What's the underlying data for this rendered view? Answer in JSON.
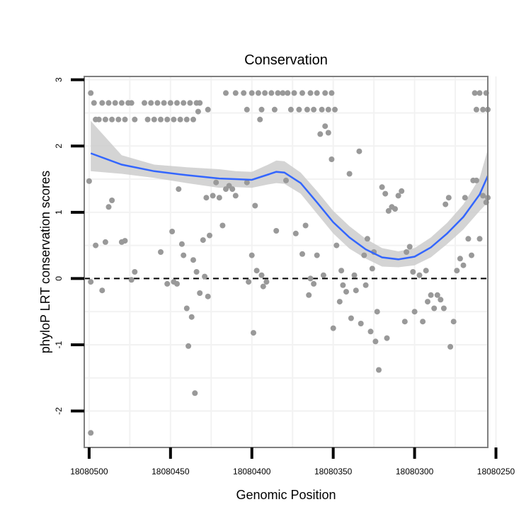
{
  "chart_data": {
    "type": "scatter",
    "title": "Conservation",
    "xlabel": "Genomic Position",
    "ylabel": "phyloP LRT conservation scores",
    "x_reversed": true,
    "xlim": [
      18080255,
      18080503
    ],
    "ylim": [
      -2.55,
      3.05
    ],
    "xticks": [
      18080500,
      18080450,
      18080400,
      18080350,
      18080300,
      18080250
    ],
    "xtick_labels": [
      "18080500",
      "18080450",
      "18080400",
      "18080350",
      "18080300",
      "18080250"
    ],
    "yticks": [
      -2,
      -1,
      0,
      1,
      2,
      3
    ],
    "ytick_labels": [
      "-2",
      "-1",
      "0",
      "1",
      "2",
      "3"
    ],
    "reference_line": {
      "y": 0,
      "style": "dashed"
    },
    "colors": {
      "points": "#999999",
      "smooth": "#3366ff",
      "band": "#cccccc",
      "border": "#7f7f7f",
      "grid": "#f2f2f2"
    },
    "series": [
      {
        "name": "scores",
        "kind": "points",
        "points": [
          [
            18080499,
            2.8
          ],
          [
            18080497,
            2.65
          ],
          [
            18080496,
            2.4
          ],
          [
            18080494,
            2.4
          ],
          [
            18080492,
            2.65
          ],
          [
            18080490,
            2.4
          ],
          [
            18080488,
            2.65
          ],
          [
            18080486,
            2.4
          ],
          [
            18080484,
            2.65
          ],
          [
            18080482,
            2.4
          ],
          [
            18080480,
            2.65
          ],
          [
            18080478,
            2.4
          ],
          [
            18080476,
            2.65
          ],
          [
            18080474,
            2.65
          ],
          [
            18080472,
            2.4
          ],
          [
            18080466,
            2.65
          ],
          [
            18080464,
            2.4
          ],
          [
            18080462,
            2.65
          ],
          [
            18080460,
            2.4
          ],
          [
            18080458,
            2.65
          ],
          [
            18080456,
            2.4
          ],
          [
            18080454,
            2.65
          ],
          [
            18080452,
            2.4
          ],
          [
            18080450,
            2.65
          ],
          [
            18080448,
            2.4
          ],
          [
            18080446,
            2.65
          ],
          [
            18080444,
            2.4
          ],
          [
            18080442,
            2.65
          ],
          [
            18080440,
            2.4
          ],
          [
            18080438,
            2.65
          ],
          [
            18080436,
            2.4
          ],
          [
            18080434,
            2.65
          ],
          [
            18080432,
            2.65
          ],
          [
            18080427,
            2.55
          ],
          [
            18080416,
            2.8
          ],
          [
            18080410,
            2.8
          ],
          [
            18080405,
            2.8
          ],
          [
            18080403,
            2.55
          ],
          [
            18080400,
            2.8
          ],
          [
            18080396,
            2.8
          ],
          [
            18080394,
            2.55
          ],
          [
            18080392,
            2.8
          ],
          [
            18080388,
            2.8
          ],
          [
            18080386,
            2.55
          ],
          [
            18080384,
            2.8
          ],
          [
            18080381,
            2.8
          ],
          [
            18080378,
            2.8
          ],
          [
            18080376,
            2.55
          ],
          [
            18080374,
            2.8
          ],
          [
            18080371,
            2.55
          ],
          [
            18080369,
            2.8
          ],
          [
            18080366,
            2.55
          ],
          [
            18080364,
            2.8
          ],
          [
            18080362,
            2.55
          ],
          [
            18080360,
            2.8
          ],
          [
            18080357,
            2.55
          ],
          [
            18080355,
            2.8
          ],
          [
            18080353,
            2.55
          ],
          [
            18080351,
            2.8
          ],
          [
            18080349,
            2.55
          ],
          [
            18080263,
            2.8
          ],
          [
            18080262,
            2.55
          ],
          [
            18080260,
            2.8
          ],
          [
            18080258,
            2.55
          ],
          [
            18080256,
            2.8
          ],
          [
            18080255,
            2.55
          ],
          [
            18080500,
            1.47
          ],
          [
            18080499,
            -0.05
          ],
          [
            18080496,
            0.5
          ],
          [
            18080492,
            -0.18
          ],
          [
            18080490,
            0.55
          ],
          [
            18080488,
            1.08
          ],
          [
            18080486,
            1.18
          ],
          [
            18080480,
            0.55
          ],
          [
            18080478,
            0.57
          ],
          [
            18080474,
            -0.02
          ],
          [
            18080472,
            0.1
          ],
          [
            18080456,
            0.4
          ],
          [
            18080452,
            -0.08
          ],
          [
            18080449,
            0.71
          ],
          [
            18080448,
            -0.05
          ],
          [
            18080446,
            -0.08
          ],
          [
            18080445,
            1.35
          ],
          [
            18080443,
            0.52
          ],
          [
            18080442,
            0.35
          ],
          [
            18080440,
            -0.45
          ],
          [
            18080439,
            -1.02
          ],
          [
            18080437,
            -0.58
          ],
          [
            18080436,
            0.28
          ],
          [
            18080435,
            -1.73
          ],
          [
            18080434,
            0.1
          ],
          [
            18080433,
            2.52
          ],
          [
            18080432,
            -0.22
          ],
          [
            18080430,
            0.58
          ],
          [
            18080429,
            0.03
          ],
          [
            18080428,
            1.22
          ],
          [
            18080427,
            -0.27
          ],
          [
            18080426,
            0.65
          ],
          [
            18080424,
            1.25
          ],
          [
            18080422,
            1.45
          ],
          [
            18080420,
            1.22
          ],
          [
            18080418,
            0.8
          ],
          [
            18080416,
            1.35
          ],
          [
            18080414,
            1.4
          ],
          [
            18080412,
            1.35
          ],
          [
            18080410,
            1.25
          ],
          [
            18080402,
            -0.05
          ],
          [
            18080400,
            0.35
          ],
          [
            18080399,
            -0.82
          ],
          [
            18080398,
            1.1
          ],
          [
            18080397,
            0.12
          ],
          [
            18080395,
            2.4
          ],
          [
            18080394,
            0.05
          ],
          [
            18080393,
            -0.12
          ],
          [
            18080391,
            -0.05
          ],
          [
            18080385,
            0.72
          ],
          [
            18080379,
            1.48
          ],
          [
            18080373,
            0.68
          ],
          [
            18080369,
            0.37
          ],
          [
            18080367,
            0.8
          ],
          [
            18080365,
            -0.25
          ],
          [
            18080364,
            0.0
          ],
          [
            18080362,
            -0.08
          ],
          [
            18080360,
            0.35
          ],
          [
            18080358,
            2.18
          ],
          [
            18080356,
            0.05
          ],
          [
            18080355,
            2.3
          ],
          [
            18080353,
            2.2
          ],
          [
            18080351,
            1.8
          ],
          [
            18080350,
            -0.75
          ],
          [
            18080348,
            0.5
          ],
          [
            18080346,
            -0.35
          ],
          [
            18080345,
            0.12
          ],
          [
            18080344,
            -0.1
          ],
          [
            18080342,
            -0.2
          ],
          [
            18080340,
            1.58
          ],
          [
            18080339,
            -0.6
          ],
          [
            18080337,
            0.05
          ],
          [
            18080336,
            -0.18
          ],
          [
            18080334,
            1.92
          ],
          [
            18080333,
            -0.68
          ],
          [
            18080331,
            0.35
          ],
          [
            18080330,
            -0.1
          ],
          [
            18080329,
            0.6
          ],
          [
            18080327,
            -0.8
          ],
          [
            18080326,
            0.15
          ],
          [
            18080325,
            0.4
          ],
          [
            18080324,
            -0.95
          ],
          [
            18080323,
            -0.5
          ],
          [
            18080322,
            -1.38
          ],
          [
            18080320,
            1.38
          ],
          [
            18080318,
            1.28
          ],
          [
            18080317,
            -0.9
          ],
          [
            18080316,
            1.02
          ],
          [
            18080314,
            1.08
          ],
          [
            18080312,
            1.05
          ],
          [
            18080310,
            1.25
          ],
          [
            18080308,
            1.32
          ],
          [
            18080306,
            -0.65
          ],
          [
            18080305,
            0.4
          ],
          [
            18080303,
            0.48
          ],
          [
            18080301,
            0.1
          ],
          [
            18080300,
            -0.5
          ],
          [
            18080297,
            0.05
          ],
          [
            18080295,
            -0.65
          ],
          [
            18080293,
            0.12
          ],
          [
            18080292,
            -0.35
          ],
          [
            18080290,
            -0.25
          ],
          [
            18080288,
            -0.45
          ],
          [
            18080286,
            -0.25
          ],
          [
            18080284,
            -0.32
          ],
          [
            18080282,
            -0.45
          ],
          [
            18080281,
            1.12
          ],
          [
            18080279,
            1.22
          ],
          [
            18080278,
            -1.03
          ],
          [
            18080276,
            -0.65
          ],
          [
            18080274,
            0.12
          ],
          [
            18080272,
            0.3
          ],
          [
            18080270,
            0.2
          ],
          [
            18080269,
            1.22
          ],
          [
            18080267,
            0.6
          ],
          [
            18080265,
            0.35
          ],
          [
            18080264,
            1.48
          ],
          [
            18080262,
            1.48
          ],
          [
            18080260,
            0.6
          ],
          [
            18080258,
            1.25
          ],
          [
            18080256,
            1.15
          ],
          [
            18080255,
            1.22
          ],
          [
            18080499,
            -2.33
          ],
          [
            18080403,
            1.45
          ]
        ]
      },
      {
        "name": "loess fit",
        "kind": "smooth",
        "x": [
          18080499,
          18080480,
          18080460,
          18080440,
          18080420,
          18080410,
          18080400,
          18080390,
          18080385,
          18080380,
          18080370,
          18080360,
          18080350,
          18080340,
          18080330,
          18080320,
          18080310,
          18080300,
          18080290,
          18080280,
          18080270,
          18080260,
          18080255
        ],
        "y": [
          1.89,
          1.72,
          1.62,
          1.56,
          1.51,
          1.5,
          1.49,
          1.57,
          1.61,
          1.6,
          1.44,
          1.15,
          0.85,
          0.62,
          0.44,
          0.32,
          0.29,
          0.33,
          0.47,
          0.68,
          0.93,
          1.27,
          1.55
        ],
        "lower": [
          1.62,
          1.58,
          1.52,
          1.44,
          1.37,
          1.38,
          1.37,
          1.42,
          1.44,
          1.43,
          1.28,
          0.98,
          0.68,
          0.45,
          0.3,
          0.18,
          0.17,
          0.2,
          0.32,
          0.52,
          0.74,
          1.02,
          1.15
        ],
        "upper": [
          2.38,
          1.86,
          1.72,
          1.68,
          1.65,
          1.62,
          1.61,
          1.72,
          1.78,
          1.77,
          1.6,
          1.32,
          1.02,
          0.79,
          0.6,
          0.46,
          0.41,
          0.46,
          0.62,
          0.84,
          1.12,
          1.52,
          1.95
        ]
      }
    ]
  }
}
